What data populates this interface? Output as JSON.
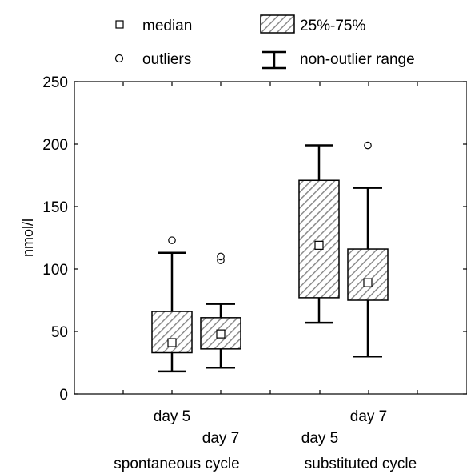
{
  "chart_data": {
    "type": "box",
    "ylabel": "nmol/l",
    "ylim": [
      0,
      250
    ],
    "yticks": [
      0,
      50,
      100,
      150,
      200,
      250
    ],
    "legend": {
      "placement": "top",
      "items": [
        {
          "label": "median",
          "marker": "square"
        },
        {
          "label": "25%-75%",
          "marker": "hatched-box"
        },
        {
          "label": "outliers",
          "marker": "circle"
        },
        {
          "label": "non-outlier range",
          "marker": "whisker"
        }
      ]
    },
    "x_labels": [
      {
        "text": "day 5",
        "position": 1.0,
        "row": 1
      },
      {
        "text": "day 7",
        "position": 2.0,
        "row": 2
      },
      {
        "text": "day 7",
        "position": 4.0,
        "row": 1
      },
      {
        "text": "day 5",
        "position": 3.0,
        "row": 2
      },
      {
        "text": "spontaneous cycle",
        "position": 1.5,
        "row": 3
      },
      {
        "text": "substituted cycle",
        "position": 3.5,
        "row": 3
      }
    ],
    "boxes": [
      {
        "group": "spontaneous cycle",
        "day": "day 5",
        "position": 1.0,
        "median": 41,
        "q1": 33,
        "q3": 66,
        "whisker_low": 18,
        "whisker_high": 113,
        "outliers": [
          123
        ]
      },
      {
        "group": "spontaneous cycle",
        "day": "day 7",
        "position": 2.0,
        "median": 48,
        "q1": 36,
        "q3": 61,
        "whisker_low": 21,
        "whisker_high": 72,
        "outliers": [
          107,
          110
        ]
      },
      {
        "group": "substituted cycle",
        "day": "day 5",
        "position": 3.0,
        "median": 119,
        "q1": 77,
        "q3": 171,
        "whisker_low": 57,
        "whisker_high": 199,
        "outliers": []
      },
      {
        "group": "substituted cycle",
        "day": "day 7",
        "position": 4.0,
        "median": 89,
        "q1": 75,
        "q3": 116,
        "whisker_low": 30,
        "whisker_high": 165,
        "outliers": [
          199
        ]
      }
    ],
    "colors": {
      "box_fill": "#ffffff",
      "hatch": "#8c8c8c",
      "stroke": "#000000"
    }
  }
}
